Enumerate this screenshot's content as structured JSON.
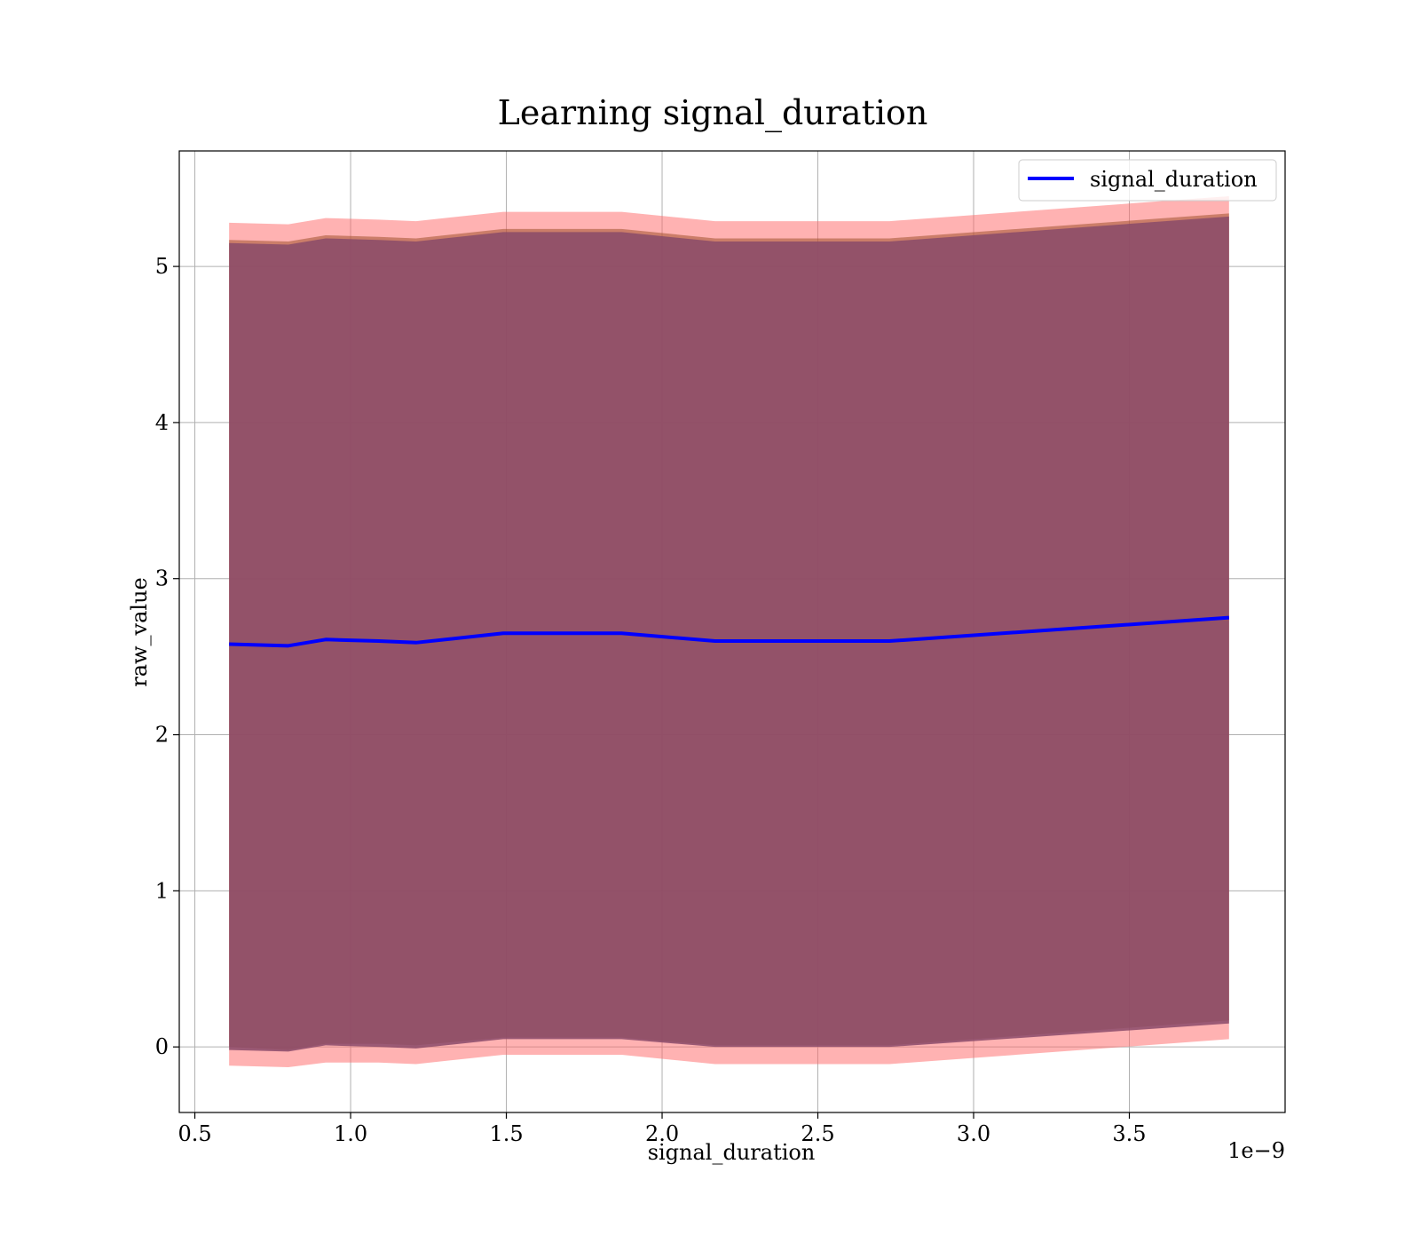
{
  "chart_data": {
    "type": "area",
    "title": "Learning signal_duration",
    "xlabel": "signal_duration",
    "ylabel": "raw_value",
    "x_offset_label": "1e−9",
    "xlim": [
      0.45,
      4.0
    ],
    "ylim": [
      -0.42,
      5.74
    ],
    "x_ticks": [
      0.5,
      1.0,
      1.5,
      2.0,
      2.5,
      3.0,
      3.5
    ],
    "x_tick_labels": [
      "0.5",
      "1.0",
      "1.5",
      "2.0",
      "2.5",
      "3.0",
      "3.5"
    ],
    "y_ticks": [
      0,
      1,
      2,
      3,
      4,
      5
    ],
    "y_tick_labels": [
      "0",
      "1",
      "2",
      "3",
      "4",
      "5"
    ],
    "grid": true,
    "legend_position": "top-right",
    "x": [
      0.61,
      0.8,
      0.92,
      1.09,
      1.21,
      1.49,
      1.87,
      2.17,
      2.73,
      3.82
    ],
    "series": [
      {
        "name": "signal_duration",
        "values": [
          2.58,
          2.57,
          2.61,
          2.6,
          2.59,
          2.65,
          2.65,
          2.6,
          2.6,
          2.75
        ],
        "color": "#0000ff"
      }
    ],
    "bands": [
      {
        "color": "#ff6666",
        "opacity": 0.5,
        "lower": [
          -0.12,
          -0.13,
          -0.1,
          -0.1,
          -0.11,
          -0.05,
          -0.05,
          -0.11,
          -0.11,
          0.05
        ],
        "upper": [
          5.28,
          5.27,
          5.31,
          5.3,
          5.29,
          5.35,
          5.35,
          5.29,
          5.29,
          5.45
        ]
      },
      {
        "color": "#a0522d",
        "opacity": 0.55,
        "lower": [
          0.0,
          -0.02,
          0.02,
          0.02,
          0.01,
          0.06,
          0.06,
          0.01,
          0.01,
          0.17
        ],
        "upper": [
          5.17,
          5.16,
          5.2,
          5.19,
          5.18,
          5.24,
          5.24,
          5.18,
          5.18,
          5.34
        ]
      },
      {
        "color": "#8a4a6a",
        "opacity": 0.85,
        "lower": [
          -0.02,
          -0.03,
          0.01,
          0.0,
          -0.01,
          0.05,
          0.05,
          0.0,
          0.0,
          0.15
        ],
        "upper": [
          5.15,
          5.14,
          5.18,
          5.17,
          5.16,
          5.22,
          5.22,
          5.16,
          5.16,
          5.32
        ]
      }
    ]
  }
}
